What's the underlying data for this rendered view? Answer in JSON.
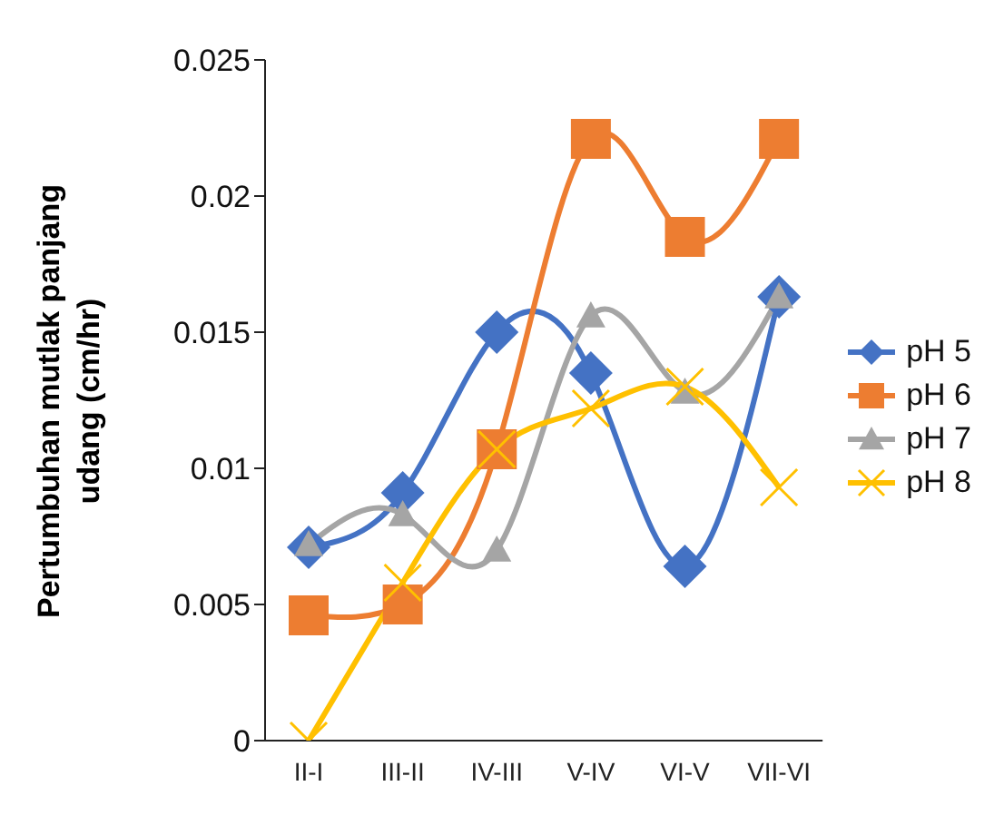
{
  "chart_data": {
    "type": "line",
    "ylabel": "Pertumbuhan mutlak panjang udang (cm/hr)",
    "categories": [
      "II-I",
      "III-II",
      "IV-III",
      "V-IV",
      "VI-V",
      "VII-VI"
    ],
    "series": [
      {
        "name": "pH 5",
        "color": "#4472c4",
        "marker": "diamond",
        "values": [
          0.0071,
          0.0091,
          0.015,
          0.0135,
          0.0064,
          0.0163
        ]
      },
      {
        "name": "pH 6",
        "color": "#ed7d31",
        "marker": "square",
        "values": [
          0.0046,
          0.005,
          0.0107,
          0.0221,
          0.0185,
          0.0221
        ]
      },
      {
        "name": "pH 7",
        "color": "#a5a5a5",
        "marker": "triangle",
        "values": [
          0.0072,
          0.0083,
          0.007,
          0.0156,
          0.0128,
          0.0163
        ]
      },
      {
        "name": "pH 8",
        "color": "#ffc000",
        "marker": "cross",
        "values": [
          0,
          0.0058,
          0.0107,
          0.0122,
          0.013,
          0.0093
        ]
      }
    ],
    "ylim": [
      0,
      0.025
    ],
    "yticks": [
      0,
      0.005,
      0.01,
      0.015,
      0.02,
      0.025
    ],
    "legend": "right"
  }
}
